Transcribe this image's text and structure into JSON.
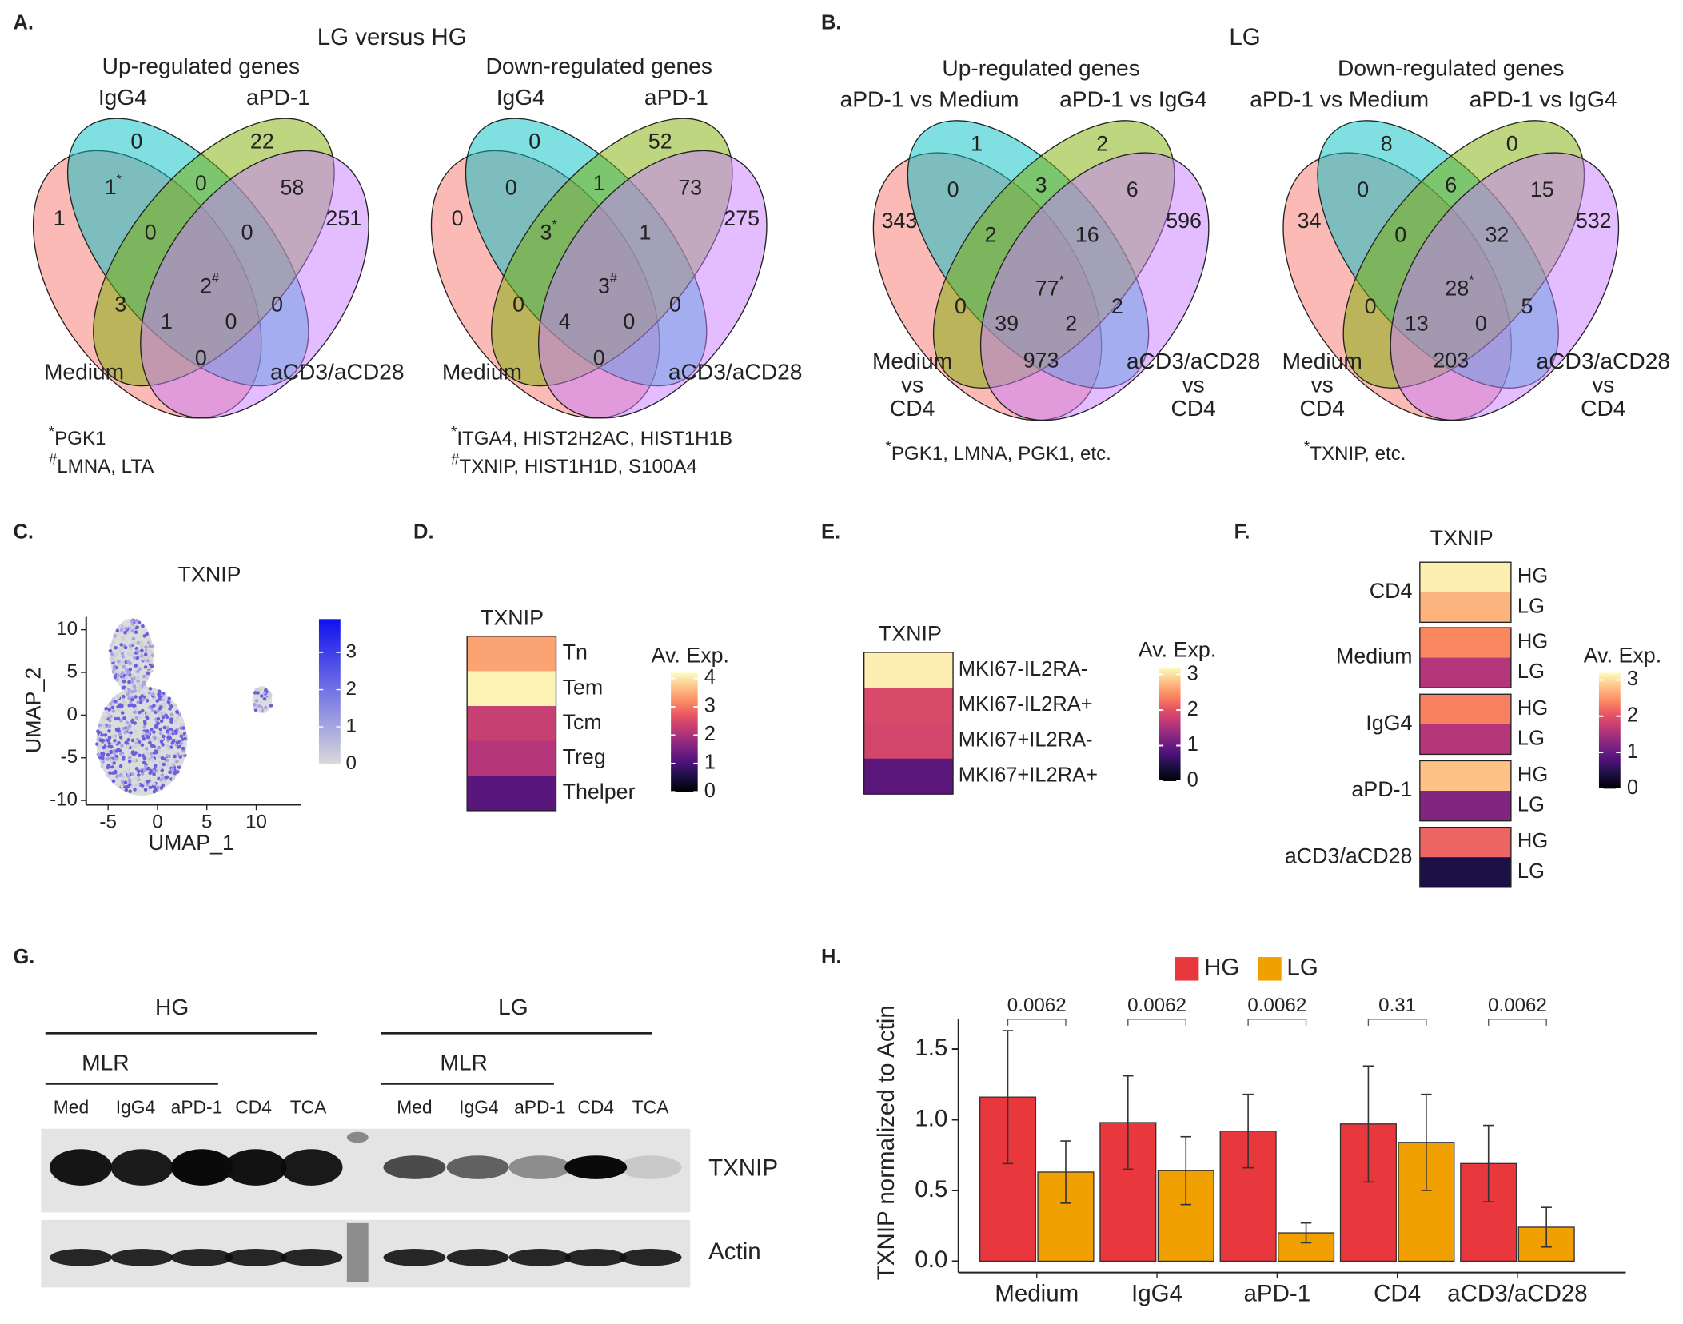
{
  "panel_labels": [
    "A.",
    "B.",
    "C.",
    "D.",
    "E.",
    "F.",
    "G.",
    "H."
  ],
  "panel_titles": [
    "LG versus HG",
    "LG"
  ],
  "venns": [
    {
      "title": "Up-regulated genes",
      "sets": [
        [
          "IgG4"
        ],
        [
          "aPD-1"
        ],
        [
          "Medium"
        ],
        [
          "aCD3/aCD28"
        ]
      ],
      "regions": [
        0,
        22,
        1,
        251,
        {
          "value": 1,
          "mark": "*"
        },
        0,
        58,
        0,
        0,
        {
          "value": 2,
          "mark": "#"
        },
        3,
        0,
        1,
        0,
        0
      ],
      "footnotes": [
        {
          "mark": "*",
          "text": "PGK1"
        },
        {
          "mark": "#",
          "text": "LMNA, LTA"
        }
      ]
    },
    {
      "title": "Down-regulated genes",
      "sets": [
        [
          "IgG4"
        ],
        [
          "aPD-1"
        ],
        [
          "Medium"
        ],
        [
          "aCD3/aCD28"
        ]
      ],
      "regions": [
        0,
        52,
        0,
        275,
        0,
        1,
        73,
        {
          "value": 3,
          "mark": "*"
        },
        1,
        {
          "value": 3,
          "mark": "#"
        },
        0,
        0,
        4,
        0,
        0
      ],
      "footnotes": [
        {
          "mark": "*",
          "text": "ITGA4, HIST2H2AC, HIST1H1B"
        },
        {
          "mark": "#",
          "text": "TXNIP, HIST1H1D, S100A4"
        }
      ]
    },
    {
      "title": "Up-regulated genes",
      "sets": [
        [
          "aPD-1 vs Medium"
        ],
        [
          "aPD-1 vs IgG4"
        ],
        [
          "Medium",
          "vs",
          "CD4"
        ],
        [
          "aCD3/aCD28",
          "vs",
          "CD4"
        ]
      ],
      "regions": [
        1,
        2,
        343,
        596,
        0,
        3,
        6,
        2,
        16,
        {
          "value": 77,
          "mark": "*"
        },
        0,
        2,
        39,
        2,
        973
      ],
      "footnotes": [
        {
          "mark": "*",
          "text": "PGK1, LMNA, PGK1, etc."
        }
      ]
    },
    {
      "title": "Down-regulated genes",
      "sets": [
        [
          "aPD-1 vs Medium"
        ],
        [
          "aPD-1 vs IgG4"
        ],
        [
          "Medium",
          "vs",
          "CD4"
        ],
        [
          "aCD3/aCD28",
          "vs",
          "CD4"
        ]
      ],
      "regions": [
        8,
        0,
        34,
        532,
        0,
        6,
        15,
        0,
        32,
        {
          "value": 28,
          "mark": "*"
        },
        0,
        5,
        13,
        0,
        203
      ],
      "footnotes": [
        {
          "mark": "*",
          "text": "TXNIP, etc."
        }
      ]
    }
  ],
  "umap": {
    "title": "TXNIP",
    "xlabel": "UMAP_1",
    "ylabel": "UMAP_2",
    "xlim": [
      -7,
      14.5
    ],
    "ylim": [
      -10.5,
      11.5
    ],
    "xticks": [
      -5,
      0,
      5,
      10
    ],
    "yticks": [
      -10,
      -5,
      0,
      5,
      10
    ],
    "colorbar": {
      "lim": [
        0,
        3.9
      ],
      "ticks": [
        0,
        1,
        2,
        3
      ]
    }
  },
  "heatmap_d": {
    "title": "TXNIP",
    "rows": [
      "Tn",
      "Tem",
      "Tcm",
      "Treg",
      "Thelper"
    ],
    "values": [
      3.4,
      4.1,
      2.3,
      2.1,
      1.15
    ],
    "colorbar": {
      "title": "Av. Exp.",
      "lim": [
        0,
        4.2
      ],
      "ticks": [
        0,
        1,
        2,
        3,
        4
      ]
    }
  },
  "heatmap_e": {
    "title": "TXNIP",
    "rows": [
      "MKI67-IL2RA-",
      "MKI67-IL2RA+",
      "MKI67+IL2RA-",
      "MKI67+IL2RA+"
    ],
    "values": [
      3.1,
      1.9,
      1.85,
      0.9
    ],
    "colorbar": {
      "title": "Av. Exp.",
      "lim": [
        0,
        3.2
      ],
      "ticks": [
        0,
        1,
        2,
        3
      ]
    }
  },
  "heatmap_f": {
    "title": "TXNIP",
    "groups": [
      {
        "name": "CD4",
        "rows": [
          "HG",
          "LG"
        ],
        "values": [
          3.1,
          2.7
        ]
      },
      {
        "name": "Medium",
        "rows": [
          "HG",
          "LG"
        ],
        "values": [
          2.4,
          1.6
        ]
      },
      {
        "name": "IgG4",
        "rows": [
          "HG",
          "LG"
        ],
        "values": [
          2.35,
          1.6
        ]
      },
      {
        "name": "aPD-1",
        "rows": [
          "HG",
          "LG"
        ],
        "values": [
          2.8,
          1.2
        ]
      },
      {
        "name": "aCD3/aCD28",
        "rows": [
          "HG",
          "LG"
        ],
        "values": [
          2.15,
          0.4
        ]
      }
    ],
    "colorbar": {
      "title": "Av. Exp.",
      "lim": [
        0,
        3.2
      ],
      "ticks": [
        0,
        1,
        2,
        3
      ]
    }
  },
  "western_blot": {
    "groups": [
      "HG",
      "LG"
    ],
    "subgroups": [
      "MLR",
      "MLR"
    ],
    "lanes": [
      [
        "Med",
        "IgG4",
        "aPD-1",
        "CD4",
        "TCA"
      ],
      [
        "Med",
        "IgG4",
        "aPD-1",
        "CD4",
        "TCA"
      ]
    ],
    "bands": [
      "TXNIP",
      "Actin"
    ]
  },
  "chart_data": {
    "type": "bar",
    "ylabel": "TXNIP normalized to Actin",
    "categories": [
      "Medium",
      "IgG4",
      "aPD-1",
      "CD4",
      "aCD3/aCD28"
    ],
    "series": [
      {
        "name": "HG",
        "color": "#e8383d",
        "values": [
          1.16,
          0.98,
          0.92,
          0.97,
          0.69
        ],
        "errors": [
          0.47,
          0.33,
          0.26,
          0.41,
          0.27
        ]
      },
      {
        "name": "LG",
        "color": "#f0a000",
        "values": [
          0.63,
          0.64,
          0.2,
          0.84,
          0.24
        ],
        "errors": [
          0.22,
          0.24,
          0.07,
          0.34,
          0.14
        ]
      }
    ],
    "ylim": [
      -0.08,
      1.71
    ],
    "yticks": [
      {
        "value": 0,
        "label": "0.0"
      },
      0.5,
      {
        "value": 1,
        "label": "1.0"
      },
      1.5
    ],
    "annotations": [
      0.0062,
      0.0062,
      0.0062,
      0.31,
      0.0062
    ],
    "legend": "top"
  }
}
